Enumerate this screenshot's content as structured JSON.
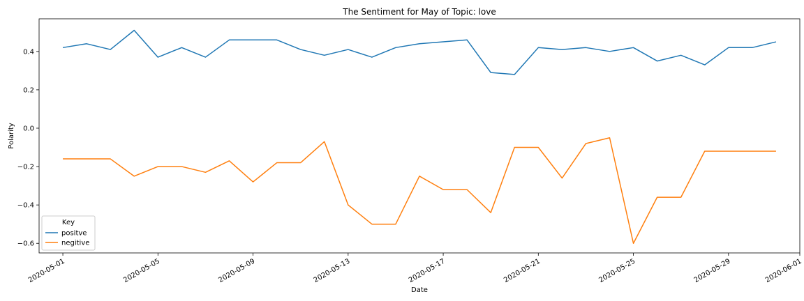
{
  "chart_data": {
    "type": "line",
    "title": "The Sentiment for May of Topic: love",
    "xlabel": "Date",
    "ylabel": "Polarity",
    "x": [
      "2020-05-01",
      "2020-05-02",
      "2020-05-03",
      "2020-05-04",
      "2020-05-05",
      "2020-05-06",
      "2020-05-07",
      "2020-05-08",
      "2020-05-09",
      "2020-05-10",
      "2020-05-11",
      "2020-05-12",
      "2020-05-13",
      "2020-05-14",
      "2020-05-15",
      "2020-05-16",
      "2020-05-17",
      "2020-05-18",
      "2020-05-19",
      "2020-05-20",
      "2020-05-21",
      "2020-05-22",
      "2020-05-23",
      "2020-05-24",
      "2020-05-25",
      "2020-05-26",
      "2020-05-27",
      "2020-05-28",
      "2020-05-29",
      "2020-05-30",
      "2020-05-31"
    ],
    "xlim": [
      "2020-04-30",
      "2020-06-01"
    ],
    "ylim": [
      -0.65,
      0.57
    ],
    "xticks": [
      "2020-05-01",
      "2020-05-05",
      "2020-05-09",
      "2020-05-13",
      "2020-05-17",
      "2020-05-21",
      "2020-05-25",
      "2020-05-29",
      "2020-06-01"
    ],
    "yticks": [
      0.4,
      0.2,
      0.0,
      -0.2,
      -0.4,
      -0.6
    ],
    "ytick_labels": [
      "0.4",
      "0.2",
      "0.0",
      "−0.2",
      "−0.4",
      "−0.6"
    ],
    "grid": false,
    "legend": {
      "title": "Key",
      "position": "lower-left"
    },
    "series": [
      {
        "name": "positve",
        "color": "#1f77b4",
        "values": [
          0.42,
          0.44,
          0.41,
          0.51,
          0.37,
          0.42,
          0.37,
          0.46,
          0.46,
          0.46,
          0.41,
          0.38,
          0.41,
          0.37,
          0.42,
          0.44,
          0.45,
          0.46,
          0.29,
          0.28,
          0.42,
          0.41,
          0.42,
          0.4,
          0.42,
          0.35,
          0.38,
          0.33,
          0.42,
          0.42,
          0.45
        ]
      },
      {
        "name": "negitive",
        "color": "#ff7f0e",
        "values": [
          -0.16,
          -0.16,
          -0.16,
          -0.25,
          -0.2,
          -0.2,
          -0.23,
          -0.17,
          -0.28,
          -0.18,
          -0.18,
          -0.07,
          -0.4,
          -0.5,
          -0.5,
          -0.25,
          -0.32,
          -0.32,
          -0.44,
          -0.1,
          -0.1,
          -0.26,
          -0.08,
          -0.05,
          -0.6,
          -0.36,
          -0.36,
          -0.12,
          -0.12,
          -0.12,
          -0.12
        ]
      }
    ]
  }
}
